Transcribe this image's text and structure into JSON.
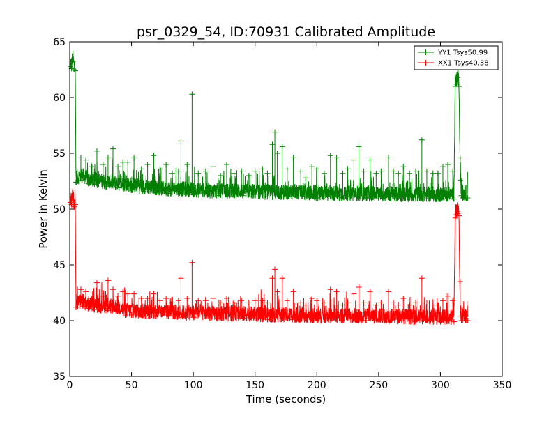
{
  "chart_data": {
    "type": "line",
    "title": "psr_0329_54, ID:70931 Calibrated Amplitude",
    "xlabel": "Time (seconds)",
    "ylabel": "Power in Kelvin",
    "xlim": [
      0,
      350
    ],
    "ylim": [
      35,
      65
    ],
    "xticks": [
      0,
      50,
      100,
      150,
      200,
      250,
      300,
      350
    ],
    "yticks": [
      35,
      40,
      45,
      50,
      55,
      60,
      65
    ],
    "grid": false,
    "legend_position": "top-right",
    "marker": "plus",
    "series": [
      {
        "name": "YY1 Tsys50.99",
        "color": "#008000",
        "x": [
          0.5,
          1.5,
          2.5,
          3.5,
          4.5,
          5,
          10,
          15,
          20,
          30,
          40,
          50,
          60,
          70,
          80,
          90,
          100,
          120,
          140,
          160,
          180,
          200,
          220,
          240,
          260,
          280,
          300,
          311,
          312,
          313,
          314,
          315,
          316,
          317,
          318,
          320,
          322
        ],
        "y": [
          62.8,
          62.6,
          63.2,
          62.5,
          62.4,
          52.4,
          52.6,
          52.3,
          52.2,
          52.0,
          51.9,
          51.7,
          51.6,
          51.5,
          51.4,
          51.4,
          51.3,
          51.2,
          51.2,
          51.1,
          51.1,
          51.0,
          51.0,
          51.0,
          50.9,
          50.9,
          50.9,
          50.9,
          61.0,
          61.2,
          61.4,
          61.0,
          52.6,
          51.2,
          51.0,
          51.0,
          51.0
        ],
        "spikes": [
          [
            9,
            54.6
          ],
          [
            13,
            54.4
          ],
          [
            18,
            53.8
          ],
          [
            22,
            55.2
          ],
          [
            27,
            54.0
          ],
          [
            31,
            54.6
          ],
          [
            35,
            55.4
          ],
          [
            39,
            53.8
          ],
          [
            43,
            54.2
          ],
          [
            47,
            54.2
          ],
          [
            52,
            54.6
          ],
          [
            58,
            53.6
          ],
          [
            63,
            54.0
          ],
          [
            68,
            54.8
          ],
          [
            73,
            53.6
          ],
          [
            78,
            54.0
          ],
          [
            83,
            53.2
          ],
          [
            88,
            53.4
          ],
          [
            90,
            56.1
          ],
          [
            95,
            54.0
          ],
          [
            99,
            60.3
          ],
          [
            104,
            53.2
          ],
          [
            110,
            53.4
          ],
          [
            116,
            53.8
          ],
          [
            122,
            53.0
          ],
          [
            127,
            54.0
          ],
          [
            133,
            53.2
          ],
          [
            139,
            53.4
          ],
          [
            145,
            53.0
          ],
          [
            150,
            53.4
          ],
          [
            156,
            53.6
          ],
          [
            160,
            53.2
          ],
          [
            164,
            55.8
          ],
          [
            166,
            56.9
          ],
          [
            168,
            55.0
          ],
          [
            172,
            55.6
          ],
          [
            176,
            53.6
          ],
          [
            181,
            54.6
          ],
          [
            187,
            53.4
          ],
          [
            191,
            52.8
          ],
          [
            196,
            53.8
          ],
          [
            200,
            53.6
          ],
          [
            206,
            53.2
          ],
          [
            211,
            54.8
          ],
          [
            216,
            54.6
          ],
          [
            221,
            53.2
          ],
          [
            225,
            53.6
          ],
          [
            230,
            54.4
          ],
          [
            234,
            55.6
          ],
          [
            238,
            53.4
          ],
          [
            243,
            54.4
          ],
          [
            248,
            53.2
          ],
          [
            252,
            53.4
          ],
          [
            258,
            54.6
          ],
          [
            262,
            53.4
          ],
          [
            266,
            53.2
          ],
          [
            270,
            53.8
          ],
          [
            275,
            53.2
          ],
          [
            280,
            53.4
          ],
          [
            285,
            56.2
          ],
          [
            289,
            53.4
          ],
          [
            294,
            53.2
          ],
          [
            298,
            53.2
          ],
          [
            302,
            53.8
          ],
          [
            306,
            54.0
          ],
          [
            310,
            53.4
          ],
          [
            314,
            61.8
          ],
          [
            316,
            54.6
          ]
        ]
      },
      {
        "name": "XX1 Tsys40.38",
        "color": "#ff0000",
        "x": [
          0.5,
          1.5,
          2.5,
          3.5,
          4.5,
          5,
          10,
          15,
          20,
          30,
          40,
          45,
          50,
          60,
          70,
          80,
          90,
          100,
          120,
          140,
          160,
          180,
          200,
          220,
          240,
          260,
          280,
          300,
          311,
          312,
          313,
          314,
          315,
          316,
          317,
          318,
          320,
          322
        ],
        "y": [
          50.6,
          50.4,
          50.8,
          50.2,
          50.4,
          41.2,
          41.3,
          41.1,
          41.0,
          40.9,
          40.8,
          40.5,
          40.5,
          40.4,
          40.4,
          40.4,
          40.3,
          40.3,
          40.2,
          40.2,
          40.1,
          40.1,
          40.0,
          40.0,
          40.0,
          40.0,
          39.9,
          39.9,
          39.9,
          49.2,
          49.5,
          49.6,
          49.4,
          40.4,
          40.0,
          40.0,
          40.0,
          40.0
        ],
        "spikes": [
          [
            9,
            42.8
          ],
          [
            13,
            42.6
          ],
          [
            18,
            42.0
          ],
          [
            22,
            43.4
          ],
          [
            27,
            42.2
          ],
          [
            31,
            43.6
          ],
          [
            35,
            42.8
          ],
          [
            39,
            42.2
          ],
          [
            43,
            42.6
          ],
          [
            47,
            42.4
          ],
          [
            52,
            42.4
          ],
          [
            58,
            42.0
          ],
          [
            63,
            42.0
          ],
          [
            68,
            42.4
          ],
          [
            73,
            41.8
          ],
          [
            78,
            42.0
          ],
          [
            83,
            41.6
          ],
          [
            88,
            41.8
          ],
          [
            90,
            43.8
          ],
          [
            95,
            42.0
          ],
          [
            99,
            45.2
          ],
          [
            104,
            41.8
          ],
          [
            110,
            41.8
          ],
          [
            116,
            42.0
          ],
          [
            122,
            41.6
          ],
          [
            127,
            42.0
          ],
          [
            133,
            41.6
          ],
          [
            139,
            41.8
          ],
          [
            145,
            41.6
          ],
          [
            150,
            41.8
          ],
          [
            156,
            41.8
          ],
          [
            160,
            41.6
          ],
          [
            164,
            43.8
          ],
          [
            166,
            44.6
          ],
          [
            168,
            42.6
          ],
          [
            172,
            43.8
          ],
          [
            176,
            41.8
          ],
          [
            181,
            42.6
          ],
          [
            187,
            41.6
          ],
          [
            191,
            41.4
          ],
          [
            196,
            42.0
          ],
          [
            200,
            41.8
          ],
          [
            206,
            41.6
          ],
          [
            211,
            42.8
          ],
          [
            216,
            42.6
          ],
          [
            221,
            41.4
          ],
          [
            225,
            41.6
          ],
          [
            230,
            42.4
          ],
          [
            234,
            43.0
          ],
          [
            238,
            41.6
          ],
          [
            243,
            42.6
          ],
          [
            248,
            41.4
          ],
          [
            252,
            41.6
          ],
          [
            258,
            42.6
          ],
          [
            262,
            41.6
          ],
          [
            266,
            41.4
          ],
          [
            270,
            42.0
          ],
          [
            275,
            41.4
          ],
          [
            280,
            41.6
          ],
          [
            285,
            43.8
          ],
          [
            289,
            41.6
          ],
          [
            294,
            41.4
          ],
          [
            298,
            41.4
          ],
          [
            302,
            41.8
          ],
          [
            306,
            42.2
          ],
          [
            310,
            41.8
          ],
          [
            314,
            49.8
          ],
          [
            316,
            43.5
          ]
        ]
      }
    ]
  }
}
